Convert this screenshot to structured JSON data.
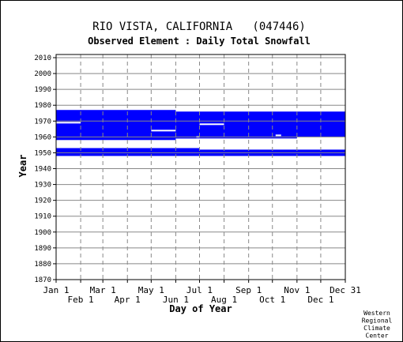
{
  "chart_data": {
    "type": "bar",
    "title": "RIO VISTA, CALIFORNIA   (047446)",
    "subtitle": "Observed Element : Daily Total Snowfall",
    "xlabel": "Day of Year",
    "ylabel": "Year",
    "credit": [
      "Western",
      "Regional",
      "Climate",
      "Center"
    ],
    "ylim": [
      1870,
      2012
    ],
    "xlim": [
      1,
      366
    ],
    "y_ticks": [
      1870,
      1880,
      1890,
      1900,
      1910,
      1920,
      1930,
      1940,
      1950,
      1960,
      1970,
      1980,
      1990,
      2000,
      2010
    ],
    "x_ticks_top_row": [
      {
        "label": "Jan 1",
        "day": 1
      },
      {
        "label": "Mar 1",
        "day": 60
      },
      {
        "label": "May 1",
        "day": 121
      },
      {
        "label": "Jul 1",
        "day": 182
      },
      {
        "label": "Sep 1",
        "day": 244
      },
      {
        "label": "Nov 1",
        "day": 305
      },
      {
        "label": "Dec 31",
        "day": 366
      }
    ],
    "x_ticks_bottom_row": [
      {
        "label": "Feb 1",
        "day": 32
      },
      {
        "label": "Apr 1",
        "day": 91
      },
      {
        "label": "Jun 1",
        "day": 152
      },
      {
        "label": "Aug 1",
        "day": 213
      },
      {
        "label": "Oct 1",
        "day": 274
      },
      {
        "label": "Dec 1",
        "day": 335
      }
    ],
    "data_present_color": "#0000ff",
    "data_periods": [
      {
        "day_start": 1,
        "day_end": 366,
        "year_start": 1948,
        "year_end": 1953
      },
      {
        "day_start": 1,
        "day_end": 152,
        "year_start": 1958,
        "year_end": 1977
      },
      {
        "day_start": 152,
        "day_end": 366,
        "year_start": 1959,
        "year_end": 1976
      }
    ],
    "missing_periods": [
      {
        "day_start": 182,
        "day_end": 366,
        "year_start": 1952,
        "year_end": 1959
      },
      {
        "day_start": 1,
        "day_end": 366,
        "year_start": 1953,
        "year_end": 1958
      },
      {
        "day_start": 305,
        "day_end": 366,
        "year_start": 1958,
        "year_end": 1960
      }
    ],
    "missing_gaps": [
      {
        "day_start": 1,
        "day_end": 32,
        "year": 1969
      },
      {
        "day_start": 121,
        "day_end": 152,
        "year": 1964
      },
      {
        "day_start": 182,
        "day_end": 213,
        "year": 1968
      },
      {
        "day_start": 178,
        "day_end": 182,
        "year": 1960
      },
      {
        "day_start": 278,
        "day_end": 285,
        "year": 1961
      }
    ]
  }
}
